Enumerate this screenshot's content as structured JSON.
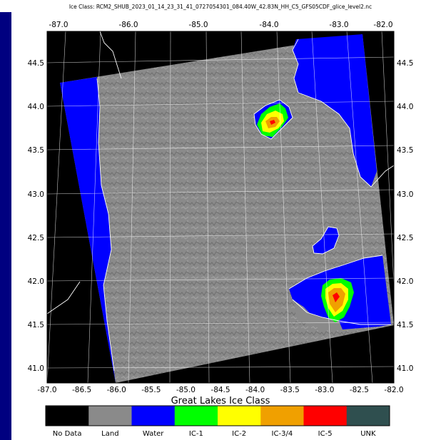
{
  "title": "Ice Class: RCM2_SHUB_2023_01_14_23_31_41_0727054301_084.40W_42.83N_HH_C5_GFS05CDF_glice_level2.nc",
  "map": {
    "top_lon_labels": [
      "-87.0",
      "-86.0",
      "-85.0",
      "-84.0",
      "-83.0",
      "-82.0"
    ],
    "bottom_lon_labels": [
      "-87.0",
      "-86.5",
      "-86.0",
      "-85.5",
      "-85.0",
      "-84.5",
      "-84.0",
      "-83.5",
      "-83.0",
      "-82.5",
      "-82.0"
    ],
    "lat_labels": [
      "44.5",
      "44.0",
      "43.5",
      "43.0",
      "42.5",
      "42.0",
      "41.5",
      "41.0"
    ]
  },
  "legend": {
    "title": "Great Lakes Ice Class",
    "classes": [
      {
        "label": "No Data",
        "color": "#000000"
      },
      {
        "label": "Land",
        "color": "#8a8a8a"
      },
      {
        "label": "Water",
        "color": "#0000ff"
      },
      {
        "label": "IC-1",
        "color": "#00ff00"
      },
      {
        "label": "IC-2",
        "color": "#ffff00"
      },
      {
        "label": "IC-3/4",
        "color": "#f0a000"
      },
      {
        "label": "IC-5",
        "color": "#ff0000"
      },
      {
        "label": "UNK",
        "color": "#2f4f4f"
      }
    ]
  },
  "colors": {
    "frame": "#000080",
    "background": "#000000",
    "land": "#8a8a8a",
    "water": "#0000ff"
  }
}
